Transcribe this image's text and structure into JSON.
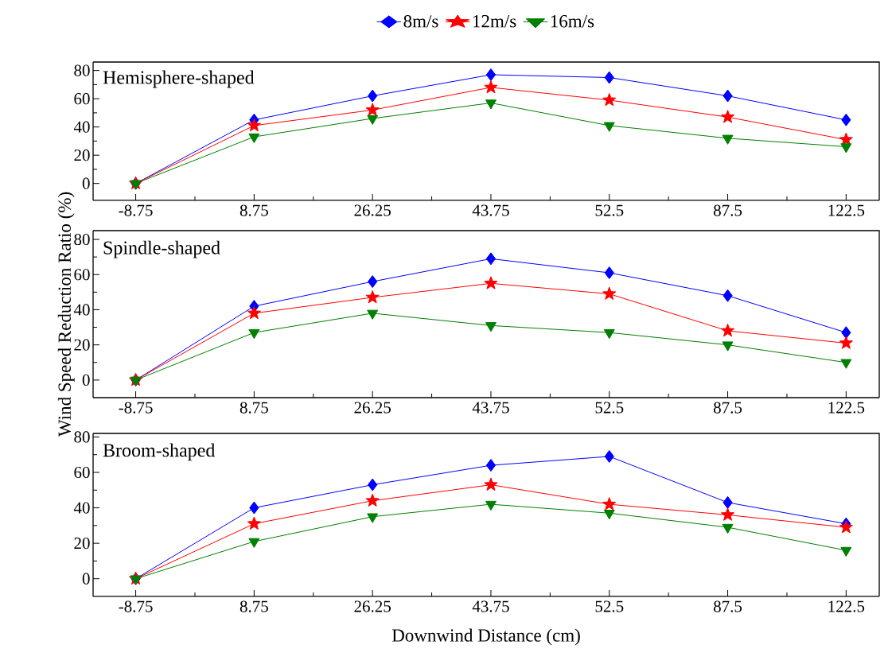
{
  "chart_data": [
    {
      "type": "line",
      "title": "Hemisphere-shaped",
      "categories": [
        "-8.75",
        "8.75",
        "26.25",
        "43.75",
        "52.5",
        "87.5",
        "122.5"
      ],
      "ylim": [
        -12,
        86
      ],
      "yticks": [
        0,
        20,
        40,
        60,
        80
      ],
      "legend": "top",
      "series": [
        {
          "name": "8m/s",
          "color": "#0000ff",
          "marker": "diamond",
          "values": [
            0,
            45,
            62,
            77,
            75,
            62,
            45
          ]
        },
        {
          "name": "12m/s",
          "color": "#ff0000",
          "marker": "star",
          "values": [
            0,
            41,
            52,
            68,
            59,
            47,
            31
          ]
        },
        {
          "name": "16m/s",
          "color": "#008000",
          "marker": "triangle",
          "values": [
            0,
            33,
            46,
            57,
            41,
            32,
            26
          ]
        }
      ]
    },
    {
      "type": "line",
      "title": "Spindle-shaped",
      "ylabel": "Wind Speed Reduction Ratio (%)",
      "categories": [
        "-8.75",
        "8.75",
        "26.25",
        "43.75",
        "52.5",
        "87.5",
        "122.5"
      ],
      "ylim": [
        -10,
        85
      ],
      "yticks": [
        0,
        20,
        40,
        60,
        80
      ],
      "series": [
        {
          "color": "#0000ff",
          "marker": "diamond",
          "values": [
            0,
            42,
            56,
            69,
            61,
            48,
            27
          ]
        },
        {
          "color": "#ff0000",
          "marker": "star",
          "values": [
            0,
            38,
            47,
            55,
            49,
            28,
            21
          ]
        },
        {
          "color": "#008000",
          "marker": "triangle",
          "values": [
            0,
            27,
            38,
            31,
            27,
            20,
            10
          ]
        }
      ]
    },
    {
      "type": "line",
      "title": "Broom-shaped",
      "xlabel": "Downwind Distance (cm)",
      "categories": [
        "-8.75",
        "8.75",
        "26.25",
        "43.75",
        "52.5",
        "87.5",
        "122.5"
      ],
      "ylim": [
        -10,
        82
      ],
      "yticks": [
        0,
        20,
        40,
        60,
        80
      ],
      "series": [
        {
          "color": "#0000ff",
          "marker": "diamond",
          "values": [
            0,
            40,
            53,
            64,
            69,
            43,
            31
          ]
        },
        {
          "color": "#ff0000",
          "marker": "star",
          "values": [
            0,
            31,
            44,
            53,
            42,
            36,
            29
          ]
        },
        {
          "color": "#008000",
          "marker": "triangle",
          "values": [
            0,
            21,
            35,
            42,
            37,
            29,
            16
          ]
        }
      ]
    }
  ]
}
